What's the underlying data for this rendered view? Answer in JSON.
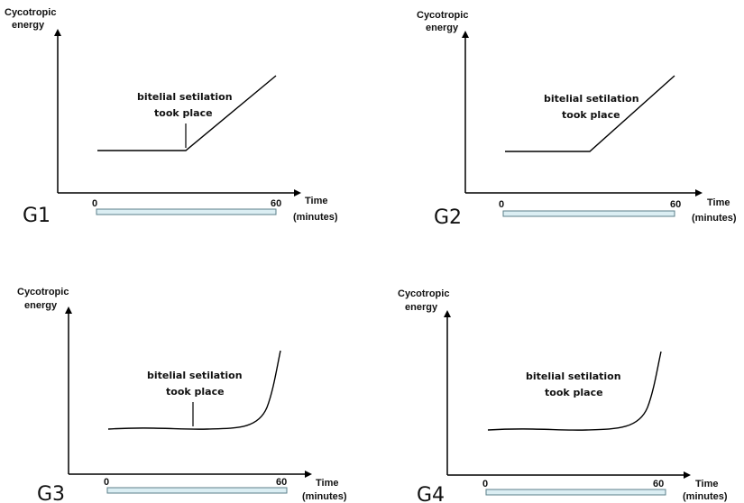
{
  "panels": [
    {
      "id": "G1",
      "label": "G1",
      "y_axis_title_line1": "Cycotropic",
      "y_axis_title_line2": "energy",
      "x_axis_title_line1": "Time",
      "x_axis_title_line2": "(minutes)",
      "tick_start": "0",
      "tick_end": "60",
      "annotation_line1": "bitelial setilation",
      "annotation_line2": "took place",
      "curve_shape": "flat-then-linear-rise",
      "has_marker": true
    },
    {
      "id": "G2",
      "label": "G2",
      "y_axis_title_line1": "Cycotropic",
      "y_axis_title_line2": "energy",
      "x_axis_title_line1": "Time",
      "x_axis_title_line2": "(minutes)",
      "tick_start": "0",
      "tick_end": "60",
      "annotation_line1": "bitelial setilation",
      "annotation_line2": "took place",
      "curve_shape": "flat-then-linear-rise",
      "has_marker": false
    },
    {
      "id": "G3",
      "label": "G3",
      "y_axis_title_line1": "Cycotropic",
      "y_axis_title_line2": "energy",
      "x_axis_title_line1": "Time",
      "x_axis_title_line2": "(minutes)",
      "tick_start": "0",
      "tick_end": "60",
      "annotation_line1": "bitelial setilation",
      "annotation_line2": "took place",
      "curve_shape": "flat-then-exponential-rise",
      "has_marker": true
    },
    {
      "id": "G4",
      "label": "G4",
      "y_axis_title_line1": "Cycotropic",
      "y_axis_title_line2": "energy",
      "x_axis_title_line1": "Time",
      "x_axis_title_line2": "(minutes)",
      "tick_start": "0",
      "tick_end": "60",
      "annotation_line1": "bitelial setilation",
      "annotation_line2": "took place",
      "curve_shape": "flat-then-exponential-rise",
      "has_marker": false
    }
  ],
  "colors": {
    "axis": "#000000",
    "time_bar_fill": "#dbeef3",
    "time_bar_stroke": "#5b7f8a"
  }
}
